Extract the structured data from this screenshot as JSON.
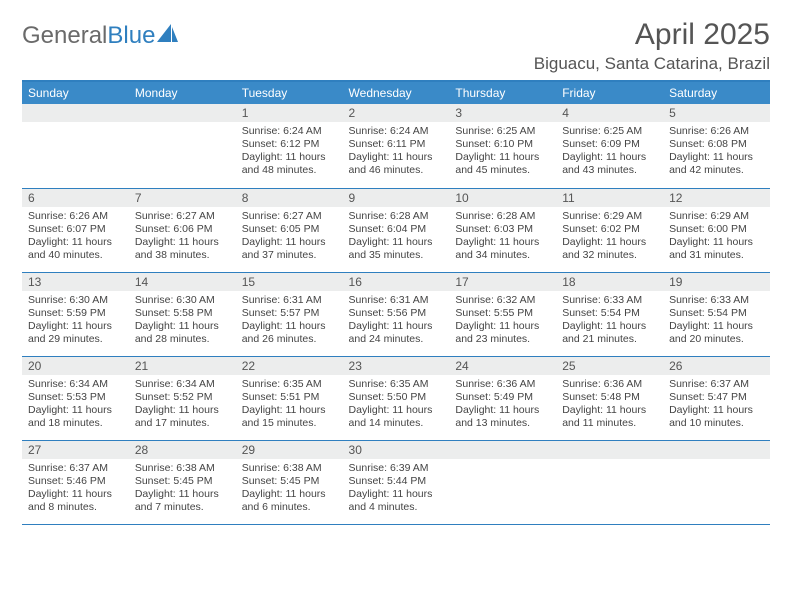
{
  "brand": {
    "part1": "General",
    "part2": "Blue"
  },
  "title": "April 2025",
  "location": "Biguacu, Santa Catarina, Brazil",
  "colors": {
    "header_bg": "#3a8ac8",
    "header_text": "#ffffff",
    "rule": "#2f7fbf",
    "daynum_bg": "#eceded",
    "text": "#444444",
    "title_text": "#555555"
  },
  "fonts": {
    "body_pt": 10.5,
    "title_pt": 30,
    "location_pt": 17,
    "dayhead_pt": 12
  },
  "days_of_week": [
    "Sunday",
    "Monday",
    "Tuesday",
    "Wednesday",
    "Thursday",
    "Friday",
    "Saturday"
  ],
  "weeks": [
    [
      null,
      null,
      {
        "n": "1",
        "sr": "6:24 AM",
        "ss": "6:12 PM",
        "dl": "11 hours and 48 minutes."
      },
      {
        "n": "2",
        "sr": "6:24 AM",
        "ss": "6:11 PM",
        "dl": "11 hours and 46 minutes."
      },
      {
        "n": "3",
        "sr": "6:25 AM",
        "ss": "6:10 PM",
        "dl": "11 hours and 45 minutes."
      },
      {
        "n": "4",
        "sr": "6:25 AM",
        "ss": "6:09 PM",
        "dl": "11 hours and 43 minutes."
      },
      {
        "n": "5",
        "sr": "6:26 AM",
        "ss": "6:08 PM",
        "dl": "11 hours and 42 minutes."
      }
    ],
    [
      {
        "n": "6",
        "sr": "6:26 AM",
        "ss": "6:07 PM",
        "dl": "11 hours and 40 minutes."
      },
      {
        "n": "7",
        "sr": "6:27 AM",
        "ss": "6:06 PM",
        "dl": "11 hours and 38 minutes."
      },
      {
        "n": "8",
        "sr": "6:27 AM",
        "ss": "6:05 PM",
        "dl": "11 hours and 37 minutes."
      },
      {
        "n": "9",
        "sr": "6:28 AM",
        "ss": "6:04 PM",
        "dl": "11 hours and 35 minutes."
      },
      {
        "n": "10",
        "sr": "6:28 AM",
        "ss": "6:03 PM",
        "dl": "11 hours and 34 minutes."
      },
      {
        "n": "11",
        "sr": "6:29 AM",
        "ss": "6:02 PM",
        "dl": "11 hours and 32 minutes."
      },
      {
        "n": "12",
        "sr": "6:29 AM",
        "ss": "6:00 PM",
        "dl": "11 hours and 31 minutes."
      }
    ],
    [
      {
        "n": "13",
        "sr": "6:30 AM",
        "ss": "5:59 PM",
        "dl": "11 hours and 29 minutes."
      },
      {
        "n": "14",
        "sr": "6:30 AM",
        "ss": "5:58 PM",
        "dl": "11 hours and 28 minutes."
      },
      {
        "n": "15",
        "sr": "6:31 AM",
        "ss": "5:57 PM",
        "dl": "11 hours and 26 minutes."
      },
      {
        "n": "16",
        "sr": "6:31 AM",
        "ss": "5:56 PM",
        "dl": "11 hours and 24 minutes."
      },
      {
        "n": "17",
        "sr": "6:32 AM",
        "ss": "5:55 PM",
        "dl": "11 hours and 23 minutes."
      },
      {
        "n": "18",
        "sr": "6:33 AM",
        "ss": "5:54 PM",
        "dl": "11 hours and 21 minutes."
      },
      {
        "n": "19",
        "sr": "6:33 AM",
        "ss": "5:54 PM",
        "dl": "11 hours and 20 minutes."
      }
    ],
    [
      {
        "n": "20",
        "sr": "6:34 AM",
        "ss": "5:53 PM",
        "dl": "11 hours and 18 minutes."
      },
      {
        "n": "21",
        "sr": "6:34 AM",
        "ss": "5:52 PM",
        "dl": "11 hours and 17 minutes."
      },
      {
        "n": "22",
        "sr": "6:35 AM",
        "ss": "5:51 PM",
        "dl": "11 hours and 15 minutes."
      },
      {
        "n": "23",
        "sr": "6:35 AM",
        "ss": "5:50 PM",
        "dl": "11 hours and 14 minutes."
      },
      {
        "n": "24",
        "sr": "6:36 AM",
        "ss": "5:49 PM",
        "dl": "11 hours and 13 minutes."
      },
      {
        "n": "25",
        "sr": "6:36 AM",
        "ss": "5:48 PM",
        "dl": "11 hours and 11 minutes."
      },
      {
        "n": "26",
        "sr": "6:37 AM",
        "ss": "5:47 PM",
        "dl": "11 hours and 10 minutes."
      }
    ],
    [
      {
        "n": "27",
        "sr": "6:37 AM",
        "ss": "5:46 PM",
        "dl": "11 hours and 8 minutes."
      },
      {
        "n": "28",
        "sr": "6:38 AM",
        "ss": "5:45 PM",
        "dl": "11 hours and 7 minutes."
      },
      {
        "n": "29",
        "sr": "6:38 AM",
        "ss": "5:45 PM",
        "dl": "11 hours and 6 minutes."
      },
      {
        "n": "30",
        "sr": "6:39 AM",
        "ss": "5:44 PM",
        "dl": "11 hours and 4 minutes."
      },
      null,
      null,
      null
    ]
  ],
  "labels": {
    "sunrise": "Sunrise:",
    "sunset": "Sunset:",
    "daylight": "Daylight:"
  }
}
